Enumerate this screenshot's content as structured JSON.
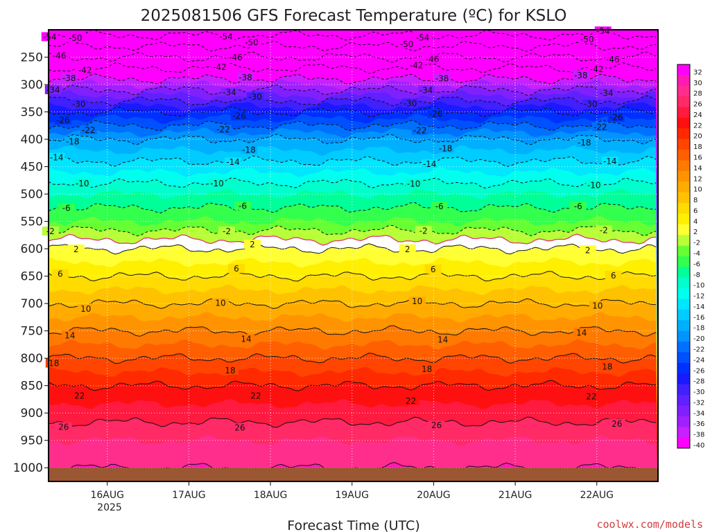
{
  "chart_data": {
    "type": "heatmap",
    "title": "2025081506 GFS Forecast Temperature (ºC) for KSLO",
    "xlabel": "Forecast Time (UTC)",
    "ylabel": "",
    "x_tick_labels": [
      "16AUG",
      "17AUG",
      "18AUG",
      "19AUG",
      "20AUG",
      "21AUG",
      "22AUG"
    ],
    "x_tick_sublabel": "2025",
    "x_range_days": [
      -0.72,
      6.75
    ],
    "y_axis": "pressure (hPa), reversed",
    "y_tick_labels": [
      250,
      300,
      350,
      400,
      450,
      500,
      550,
      600,
      650,
      700,
      750,
      800,
      850,
      900,
      950,
      1000
    ],
    "y_range": [
      1025,
      200
    ],
    "grid": true,
    "contour_interval": 4,
    "colorbar_labels": [
      32,
      30,
      28,
      26,
      24,
      22,
      20,
      18,
      16,
      14,
      12,
      10,
      8,
      6,
      4,
      2,
      -2,
      -4,
      -6,
      -8,
      -10,
      -12,
      -14,
      -16,
      -18,
      -20,
      -22,
      -24,
      -26,
      -28,
      -30,
      -32,
      -34,
      -36,
      -38,
      -40
    ],
    "profile_reference": {
      "pressure": [
        210,
        250,
        300,
        350,
        400,
        450,
        500,
        550,
        600,
        650,
        700,
        750,
        800,
        850,
        900,
        950,
        1000
      ],
      "temperature": [
        -54,
        -46,
        -36,
        -26,
        -18,
        -13,
        -8,
        -4,
        2,
        6,
        10,
        14,
        18,
        22,
        25,
        28,
        30
      ]
    },
    "contour_labels": [
      {
        "t": "-54",
        "p": 210
      },
      {
        "t": "-50",
        "p": 222
      },
      {
        "t": "-46",
        "p": 253
      },
      {
        "t": "-42",
        "p": 270
      },
      {
        "t": "-38",
        "p": 285
      },
      {
        "t": "-34",
        "p": 310
      },
      {
        "t": "-30",
        "p": 332
      },
      {
        "t": "-26",
        "p": 362
      },
      {
        "t": "-22",
        "p": 386
      },
      {
        "t": "-18",
        "p": 413
      },
      {
        "t": "-14",
        "p": 440
      },
      {
        "t": "-10",
        "p": 480
      },
      {
        "t": "-6",
        "p": 520
      },
      {
        "t": "-2",
        "p": 565
      },
      {
        "t": "2",
        "p": 600
      },
      {
        "t": "6",
        "p": 645
      },
      {
        "t": "10",
        "p": 705
      },
      {
        "t": "14",
        "p": 760
      },
      {
        "t": "18",
        "p": 815
      },
      {
        "t": "22",
        "p": 870
      },
      {
        "t": "26",
        "p": 925
      }
    ],
    "surface_color": "#9b5632",
    "freezing_line_color": "#e8307a"
  },
  "footer": {
    "credit": "coolwx.com/models"
  }
}
